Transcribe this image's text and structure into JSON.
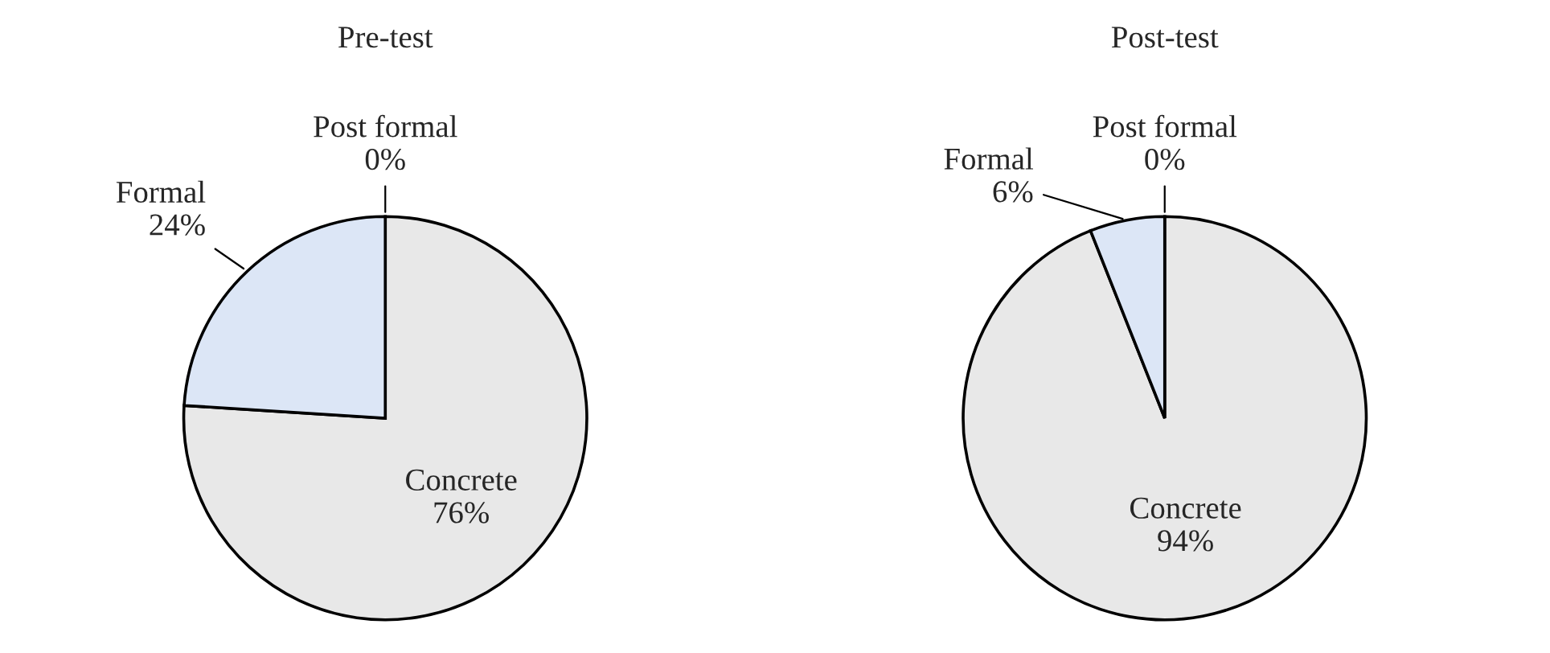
{
  "chart_data": [
    {
      "type": "pie",
      "title": "Pre-test",
      "categories": [
        "Concrete",
        "Formal",
        "Post formal"
      ],
      "values": [
        76,
        24,
        0
      ],
      "value_labels": [
        "76%",
        "24%",
        "0%"
      ],
      "colors": [
        "#e8e8e8",
        "#dce6f6",
        "#ffffff"
      ]
    },
    {
      "type": "pie",
      "title": "Post-test",
      "categories": [
        "Concrete",
        "Formal",
        "Post formal"
      ],
      "values": [
        94,
        6,
        0
      ],
      "value_labels": [
        "94%",
        "6%",
        "0%"
      ],
      "colors": [
        "#e8e8e8",
        "#dce6f6",
        "#ffffff"
      ]
    }
  ]
}
